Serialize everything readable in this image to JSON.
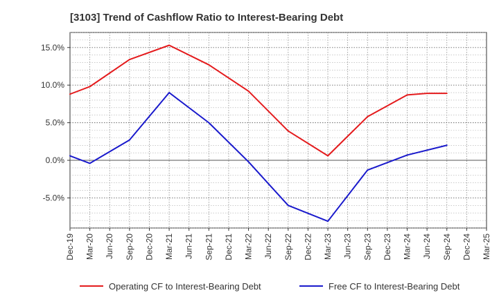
{
  "chart_data": {
    "type": "line",
    "title": "[3103]  Trend of Cashflow Ratio to Interest-Bearing Debt",
    "xlabel": "",
    "ylabel": "",
    "categories": [
      "Dec-19",
      "Mar-20",
      "Jun-20",
      "Sep-20",
      "Dec-20",
      "Mar-21",
      "Jun-21",
      "Sep-21",
      "Dec-21",
      "Mar-22",
      "Jun-22",
      "Sep-22",
      "Dec-22",
      "Mar-23",
      "Jun-23",
      "Sep-23",
      "Dec-23",
      "Mar-24",
      "Jun-24",
      "Sep-24",
      "Dec-24",
      "Mar-25"
    ],
    "ylim": [
      -9,
      17
    ],
    "yticks": [
      -5,
      0,
      5,
      10,
      15
    ],
    "ytick_labels": [
      "-5.0%",
      "0.0%",
      "5.0%",
      "10.0%",
      "15.0%"
    ],
    "grid": true,
    "legend_position": "bottom",
    "series": [
      {
        "name": "Operating CF to Interest-Bearing Debt",
        "color": "#e41a1c",
        "values": [
          8.8,
          9.8,
          null,
          13.4,
          null,
          15.3,
          null,
          12.7,
          null,
          9.2,
          null,
          3.9,
          null,
          0.6,
          null,
          5.8,
          null,
          8.7,
          8.9,
          8.9,
          null,
          null
        ]
      },
      {
        "name": "Free CF to Interest-Bearing Debt",
        "color": "#1919cc",
        "values": [
          0.6,
          -0.4,
          null,
          2.7,
          null,
          9.0,
          null,
          5.0,
          null,
          -0.2,
          null,
          -6.0,
          null,
          -8.1,
          null,
          -1.3,
          null,
          0.7,
          null,
          2.0,
          null,
          null
        ]
      }
    ]
  }
}
